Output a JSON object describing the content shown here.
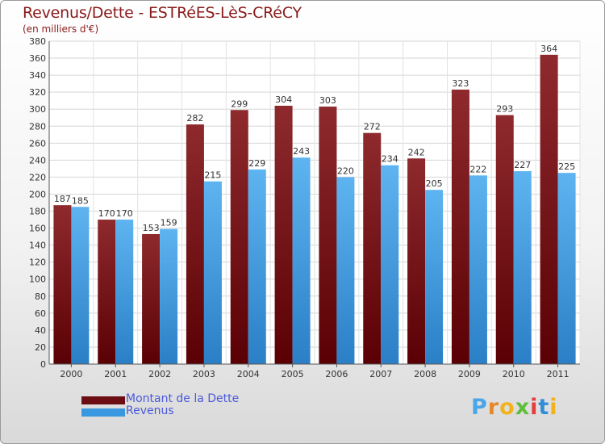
{
  "chart_data": {
    "type": "bar",
    "title": "Revenus/Dette - ESTRéES-LèS-CRéCY",
    "subtitle": "(en milliers d'€)",
    "categories": [
      "2000",
      "2001",
      "2002",
      "2003",
      "2004",
      "2005",
      "2006",
      "2007",
      "2008",
      "2009",
      "2010",
      "2011"
    ],
    "series": [
      {
        "name": "Montant de la Dette",
        "values": [
          187,
          170,
          153,
          282,
          299,
          304,
          303,
          272,
          242,
          323,
          293,
          364
        ],
        "color": "#7a1218"
      },
      {
        "name": "Revenus",
        "values": [
          185,
          170,
          159,
          215,
          229,
          243,
          220,
          234,
          205,
          222,
          227,
          225
        ],
        "color": "#4aa6e8"
      }
    ],
    "yticks": [
      0,
      20,
      40,
      60,
      80,
      100,
      120,
      140,
      160,
      180,
      200,
      220,
      240,
      260,
      280,
      300,
      320,
      340,
      360,
      380
    ],
    "ylim": [
      0,
      380
    ],
    "grid": true,
    "legend": "bottom-left"
  },
  "legend": {
    "debt_label": "Montant de la Dette",
    "revenue_label": "Revenus"
  },
  "logo": {
    "letters": [
      "P",
      "r",
      "o",
      "x",
      "i",
      "t",
      "i"
    ],
    "colors": [
      "#4aa6e8",
      "#e8872a",
      "#f2b21b",
      "#5fbf3a",
      "#e53c3c",
      "#2f8fd6",
      "#f2b21b"
    ]
  }
}
